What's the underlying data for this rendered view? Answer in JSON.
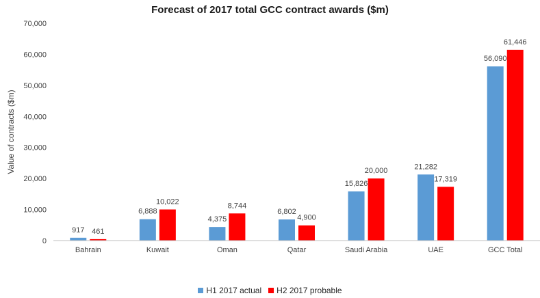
{
  "chart_data": {
    "type": "bar",
    "title": "Forecast of 2017 total GCC contract awards ($m)",
    "xlabel": "",
    "ylabel": "Value of contracts ($m)",
    "ylim": [
      0,
      70000
    ],
    "yticks": [
      "0",
      "10,000",
      "20,000",
      "30,000",
      "40,000",
      "50,000",
      "60,000",
      "70,000"
    ],
    "categories": [
      "Bahrain",
      "Kuwait",
      "Oman",
      "Qatar",
      "Saudi Arabia",
      "UAE",
      "GCC Total"
    ],
    "series": [
      {
        "name": "H1 2017 actual",
        "color": "#5b9bd5",
        "values": [
          917,
          6888,
          4375,
          6802,
          15826,
          21282,
          56090
        ],
        "labels": [
          "917",
          "6,888",
          "4,375",
          "6,802",
          "15,826",
          "21,282",
          "56,090"
        ]
      },
      {
        "name": "H2 2017 probable",
        "color": "#ff0000",
        "values": [
          461,
          10022,
          8744,
          4900,
          20000,
          17319,
          61446
        ],
        "labels": [
          "461",
          "10,022",
          "8,744",
          "4,900",
          "20,000",
          "17,319",
          "61,446"
        ]
      }
    ],
    "grid": false,
    "legend_position": "bottom"
  }
}
